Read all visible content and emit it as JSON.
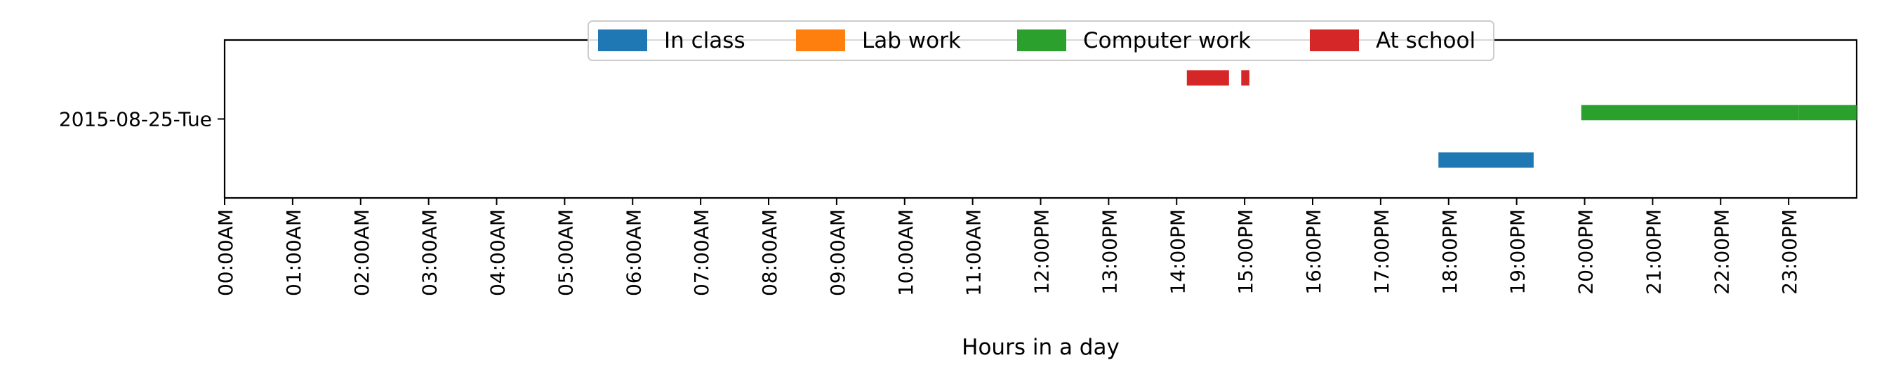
{
  "chart_data": {
    "type": "timeline",
    "xlabel": "Hours in a day",
    "xlim": [
      0,
      24
    ],
    "x_ticks": [
      {
        "value": 0,
        "label": "00:00AM"
      },
      {
        "value": 1,
        "label": "01:00AM"
      },
      {
        "value": 2,
        "label": "02:00AM"
      },
      {
        "value": 3,
        "label": "03:00AM"
      },
      {
        "value": 4,
        "label": "04:00AM"
      },
      {
        "value": 5,
        "label": "05:00AM"
      },
      {
        "value": 6,
        "label": "06:00AM"
      },
      {
        "value": 7,
        "label": "07:00AM"
      },
      {
        "value": 8,
        "label": "08:00AM"
      },
      {
        "value": 9,
        "label": "09:00AM"
      },
      {
        "value": 10,
        "label": "10:00AM"
      },
      {
        "value": 11,
        "label": "11:00AM"
      },
      {
        "value": 12,
        "label": "12:00PM"
      },
      {
        "value": 13,
        "label": "13:00PM"
      },
      {
        "value": 14,
        "label": "14:00PM"
      },
      {
        "value": 15,
        "label": "15:00PM"
      },
      {
        "value": 16,
        "label": "16:00PM"
      },
      {
        "value": 17,
        "label": "17:00PM"
      },
      {
        "value": 18,
        "label": "18:00PM"
      },
      {
        "value": 19,
        "label": "19:00PM"
      },
      {
        "value": 20,
        "label": "20:00PM"
      },
      {
        "value": 21,
        "label": "21:00PM"
      },
      {
        "value": 22,
        "label": "22:00PM"
      },
      {
        "value": 23,
        "label": "23:00PM"
      }
    ],
    "days": [
      "2015-08-25-Tue"
    ],
    "legend_position": "upper center",
    "series": [
      {
        "name": "In class",
        "color": "#1f77b4",
        "intervals": [
          [
            17.85,
            19.25
          ]
        ]
      },
      {
        "name": "Lab work",
        "color": "#ff7f0e",
        "intervals": []
      },
      {
        "name": "Computer work",
        "color": "#2ca02c",
        "intervals": [
          [
            19.95,
            23.15
          ],
          [
            23.15,
            24.0
          ]
        ]
      },
      {
        "name": "At school",
        "color": "#d62728",
        "intervals": [
          [
            14.15,
            14.77
          ],
          [
            14.95,
            15.07
          ]
        ]
      }
    ]
  }
}
